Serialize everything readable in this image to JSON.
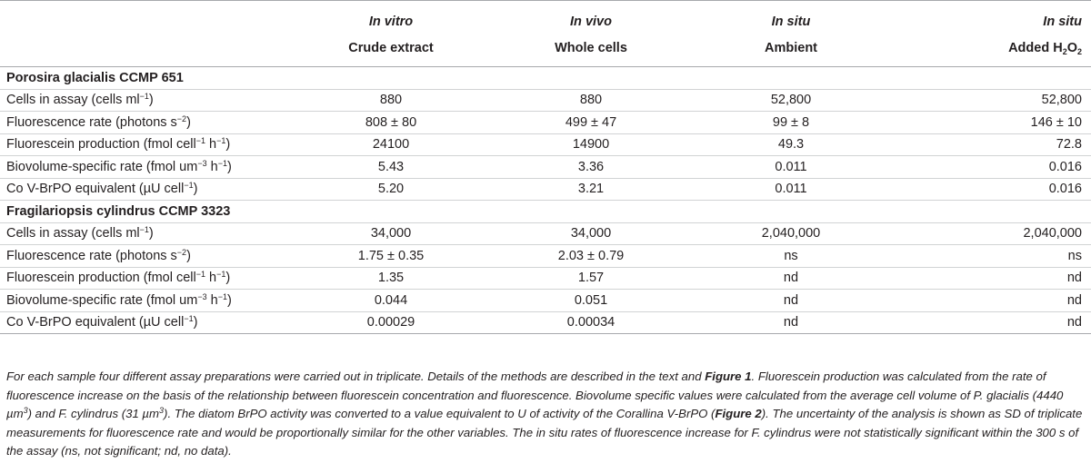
{
  "header": {
    "columns": [
      {
        "top": "In vitro",
        "bottom": "Crude extract"
      },
      {
        "top": "In vivo",
        "bottom": "Whole cells"
      },
      {
        "top": "In situ",
        "bottom": "Ambient"
      },
      {
        "top": "In situ",
        "bottom": "Added H",
        "sub": "2",
        "tail": "O",
        "sub2": "2"
      }
    ]
  },
  "groups": [
    {
      "name": "Porosira glacialis CCMP 651",
      "rows": [
        {
          "label": "Cells in assay (cells ml",
          "sup": "−1",
          "label_end": ")",
          "values": [
            "880",
            "880",
            "52,800",
            "52,800"
          ]
        },
        {
          "label": "Fluorescence rate (photons s",
          "sup": "−2",
          "label_end": ")",
          "values": [
            "808 ± 80",
            "499 ± 47",
            "99 ± 8",
            "146 ± 10"
          ]
        },
        {
          "label": "Fluorescein production (fmol cell",
          "sup": "−1",
          "label_mid": " h",
          "sup2": "−1",
          "label_end": ")",
          "values": [
            "24100",
            "14900",
            "49.3",
            "72.8"
          ]
        },
        {
          "label": "Biovolume-specific rate (fmol um",
          "sup": "−3",
          "label_mid": " h",
          "sup2": "−1",
          "label_end": ")",
          "values": [
            "5.43",
            "3.36",
            "0.011",
            "0.016"
          ]
        },
        {
          "label": "Co V-BrPO equivalent (µU cell",
          "sup": "−1",
          "label_end": ")",
          "values": [
            "5.20",
            "3.21",
            "0.011",
            "0.016"
          ]
        }
      ]
    },
    {
      "name": "Fragilariopsis cylindrus CCMP 3323",
      "rows": [
        {
          "label": "Cells in assay (cells ml",
          "sup": "−1",
          "label_end": ")",
          "values": [
            "34,000",
            "34,000",
            "2,040,000",
            "2,040,000"
          ]
        },
        {
          "label": "Fluorescence rate (photons s",
          "sup": "−2",
          "label_end": ")",
          "values": [
            "1.75 ± 0.35",
            "2.03 ± 0.79",
            "ns",
            "ns"
          ]
        },
        {
          "label": "Fluorescein production (fmol cell",
          "sup": "−1",
          "label_mid": " h",
          "sup2": "−1",
          "label_end": ")",
          "values": [
            "1.35",
            "1.57",
            "nd",
            "nd"
          ]
        },
        {
          "label": "Biovolume-specific rate (fmol um",
          "sup": "−3",
          "label_mid": " h",
          "sup2": "−1",
          "label_end": ")",
          "values": [
            "0.044",
            "0.051",
            "nd",
            "nd"
          ]
        },
        {
          "label": "Co V-BrPO equivalent (µU cell",
          "sup": "−1",
          "label_end": ")",
          "values": [
            "0.00029",
            "0.00034",
            "nd",
            "nd"
          ]
        }
      ]
    }
  ],
  "footnote": {
    "p1": "For each sample four different assay preparations were carried out in triplicate. Details of the methods are described in the text and ",
    "ref1": "Figure 1",
    "p2": ". Fluorescein production was calculated from the rate of fluorescence increase on the basis of the relationship between fluorescein concentration and fluorescence. Biovolume specific values were calculated from the average cell volume of P. glacialis (4440 µm",
    "sup1": "3",
    "p3": ") and F. cylindrus (31 µm",
    "sup2": "3",
    "p4": "). The diatom BrPO activity was converted to a value equivalent to U of activity of the Corallina V-BrPO (",
    "ref2": "Figure 2",
    "p5": "). The uncertainty of the analysis is shown as SD of triplicate measurements for fluorescence rate and would be proportionally similar for the other variables. The in situ rates of fluorescence increase for F. cylindrus were not statistically significant within the 300 s of the assay (ns, not significant; nd, no data)."
  }
}
